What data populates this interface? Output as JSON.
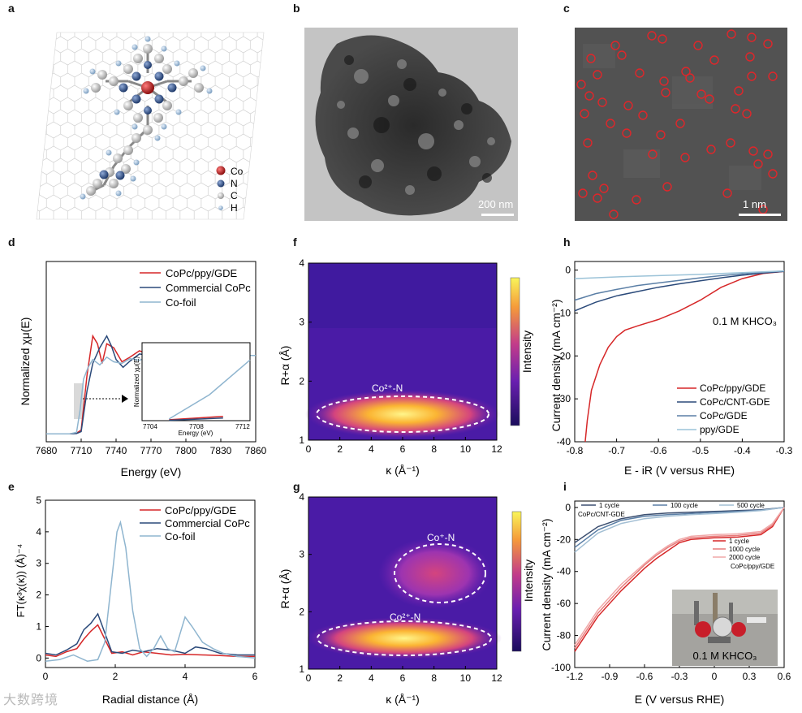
{
  "panels": {
    "a": {
      "label": "a",
      "legend": [
        "Co",
        "N",
        "C",
        "H"
      ],
      "colors": {
        "Co": "#c82020",
        "N": "#3a5a8c",
        "C": "#d0d0d0",
        "H": "#b4cde6"
      }
    },
    "b": {
      "label": "b",
      "scale": "200 nm"
    },
    "c": {
      "label": "c",
      "scale": "1 nm"
    },
    "d": {
      "label": "d",
      "ylabel": "Normalized χμ(E)",
      "xlabel": "Energy (eV)",
      "xticks": [
        "7680",
        "7710",
        "7740",
        "7770",
        "7800",
        "7830",
        "7860"
      ],
      "inset_ylabel": "Normalized χμ(E)",
      "inset_xlabel": "Energy (eV)",
      "inset_xticks": [
        "7704",
        "7708",
        "7712"
      ]
    },
    "e": {
      "label": "e",
      "ylabel": "FT(κ³χ(κ)) (Å)⁻⁴",
      "xlabel": "Radial distance (Å)",
      "xticks": [
        "0",
        "2",
        "4",
        "6"
      ],
      "yticks": [
        "0",
        "1",
        "2",
        "3",
        "4",
        "5"
      ]
    },
    "f": {
      "label": "f",
      "ylabel": "R+α (Å)",
      "xlabel": "κ (Å⁻¹)",
      "colorbar": "Intensity",
      "annotation": "Co²⁺-N",
      "xticks": [
        "0",
        "2",
        "4",
        "6",
        "8",
        "10",
        "12"
      ],
      "yticks": [
        "1",
        "2",
        "3",
        "4"
      ]
    },
    "g": {
      "label": "g",
      "ylabel": "R+α (Å)",
      "xlabel": "κ (Å⁻¹)",
      "colorbar": "Intensity",
      "annotation1": "Co⁺-N",
      "annotation2": "Co²⁺-N",
      "xticks": [
        "0",
        "2",
        "4",
        "6",
        "8",
        "10",
        "12"
      ],
      "yticks": [
        "1",
        "2",
        "3",
        "4"
      ]
    },
    "h": {
      "label": "h",
      "ylabel": "Current density (mA cm⁻²)",
      "xlabel": "E - iR (V versus RHE)",
      "note": "0.1 M KHCO₃",
      "xticks": [
        "-0.8",
        "-0.7",
        "-0.6",
        "-0.5",
        "-0.4",
        "-0.3"
      ],
      "yticks": [
        "0",
        "-10",
        "-20",
        "-30",
        "-40"
      ]
    },
    "i": {
      "label": "i",
      "ylabel": "Current density (mA cm⁻²)",
      "xlabel": "E (V versus RHE)",
      "legend_top": [
        "1 cycle",
        "100 cycle",
        "500 cycle"
      ],
      "legend_top_caption": "CoPc/CNT-GDE",
      "legend_bottom": [
        "1 cycle",
        "1000 cycle",
        "2000 cycle"
      ],
      "legend_bottom_caption": "CoPc/ppy/GDE",
      "photo_caption": "0.1 M KHCO₃",
      "xticks": [
        "-1.2",
        "-0.9",
        "-0.6",
        "-0.3",
        "0",
        "0.3",
        "0.6"
      ],
      "yticks": [
        "0",
        "-20",
        "-40",
        "-60",
        "-80",
        "-100"
      ]
    }
  },
  "watermark": "大数跨境",
  "chart_data": [
    {
      "id": "d",
      "type": "line",
      "title": "",
      "xlabel": "Energy (eV)",
      "ylabel": "Normalized χμ(E)",
      "xlim": [
        7680,
        7860
      ],
      "series": [
        {
          "name": "CoPc/ppy/GDE",
          "color": "#d62728",
          "x": [
            7680,
            7700,
            7706,
            7710,
            7715,
            7720,
            7724,
            7728,
            7732,
            7738,
            7745,
            7752,
            7760,
            7770,
            7780,
            7800,
            7820,
            7840,
            7860
          ],
          "y": [
            0,
            0,
            0.01,
            0.05,
            0.75,
            1.25,
            1.15,
            0.9,
            1.15,
            1.1,
            0.92,
            0.98,
            1.06,
            1.01,
            0.97,
            1.02,
            1.0,
            1.0,
            1.0
          ]
        },
        {
          "name": "Commercial CoPc",
          "color": "#2b4a7a",
          "x": [
            7680,
            7700,
            7706,
            7710,
            7715,
            7720,
            7726,
            7732,
            7736,
            7740,
            7746,
            7752,
            7760,
            7770,
            7780,
            7800,
            7820,
            7840,
            7860
          ],
          "y": [
            0,
            0,
            0.005,
            0.03,
            0.55,
            0.9,
            1.1,
            1.25,
            1.12,
            0.95,
            0.85,
            0.93,
            1.02,
            1.0,
            0.97,
            1.01,
            1.0,
            1.0,
            1.0
          ]
        },
        {
          "name": "Co-foil",
          "color": "#8fb5cf",
          "x": [
            7680,
            7700,
            7706,
            7709,
            7712,
            7716,
            7720,
            7726,
            7732,
            7738,
            7745,
            7752,
            7760,
            7770,
            7780,
            7790,
            7800,
            7810,
            7820,
            7840,
            7860
          ],
          "y": [
            0,
            0,
            0.02,
            0.3,
            0.7,
            0.85,
            0.95,
            0.88,
            0.98,
            0.92,
            0.9,
            0.96,
            0.94,
            0.99,
            0.97,
            1.03,
            1.06,
            0.95,
            0.97,
            1.0,
            1.0
          ]
        }
      ]
    },
    {
      "id": "e",
      "type": "line",
      "xlabel": "Radial distance (Å)",
      "ylabel": "FT(κ³χ(κ)) (Å)⁻⁴",
      "xlim": [
        0,
        6
      ],
      "ylim": [
        -0.3,
        5
      ],
      "series": [
        {
          "name": "CoPc/ppy/GDE",
          "color": "#d62728",
          "x": [
            0,
            0.3,
            0.6,
            0.9,
            1.1,
            1.3,
            1.5,
            1.7,
            1.9,
            2.2,
            2.5,
            2.8,
            3.2,
            3.6,
            4.0,
            4.5,
            5.0,
            5.5,
            6.0
          ],
          "y": [
            0.1,
            0.05,
            0.2,
            0.3,
            0.6,
            0.85,
            1.05,
            0.6,
            0.15,
            0.2,
            0.1,
            0.2,
            0.15,
            0.1,
            0.12,
            0.1,
            0.08,
            0.05,
            0.05
          ]
        },
        {
          "name": "Commercial CoPc",
          "color": "#2b4a7a",
          "x": [
            0,
            0.3,
            0.6,
            0.9,
            1.1,
            1.3,
            1.5,
            1.7,
            1.9,
            2.2,
            2.5,
            2.8,
            3.2,
            3.6,
            4.0,
            4.3,
            4.6,
            5.0,
            5.5,
            6.0
          ],
          "y": [
            0.15,
            0.1,
            0.25,
            0.45,
            0.9,
            1.1,
            1.4,
            0.8,
            0.2,
            0.15,
            0.25,
            0.2,
            0.3,
            0.25,
            0.15,
            0.35,
            0.3,
            0.15,
            0.1,
            0.1
          ]
        },
        {
          "name": "Co-foil",
          "color": "#8fb5cf",
          "x": [
            0,
            0.4,
            0.8,
            1.2,
            1.5,
            1.7,
            1.9,
            2.05,
            2.15,
            2.3,
            2.5,
            2.7,
            2.9,
            3.1,
            3.3,
            3.5,
            3.7,
            4.0,
            4.2,
            4.5,
            4.8,
            5.1,
            5.5,
            6.0
          ],
          "y": [
            -0.1,
            -0.05,
            0.1,
            -0.1,
            -0.05,
            0.5,
            2.5,
            4.0,
            4.3,
            3.5,
            1.5,
            0.3,
            0.05,
            0.3,
            0.7,
            0.3,
            0.2,
            1.3,
            1.0,
            0.5,
            0.3,
            0.15,
            0.05,
            0.0
          ]
        }
      ]
    },
    {
      "id": "f",
      "type": "heatmap",
      "xlabel": "κ (Å⁻¹)",
      "ylabel": "R+α (Å)",
      "xlim": [
        0,
        12
      ],
      "ylim": [
        1,
        4
      ],
      "peaks": [
        {
          "label": "Co²⁺-N",
          "k": 6.0,
          "R": 1.5
        }
      ]
    },
    {
      "id": "g",
      "type": "heatmap",
      "xlabel": "κ (Å⁻¹)",
      "ylabel": "R+α (Å)",
      "xlim": [
        0,
        12
      ],
      "ylim": [
        1,
        4
      ],
      "peaks": [
        {
          "label": "Co⁺-N",
          "k": 8.5,
          "R": 2.7
        },
        {
          "label": "Co²⁺-N",
          "k": 6.0,
          "R": 1.5
        }
      ]
    },
    {
      "id": "h",
      "type": "line",
      "xlabel": "E - iR (V versus RHE)",
      "ylabel": "Current density (mA cm⁻²)",
      "xlim": [
        -0.8,
        -0.3
      ],
      "ylim": [
        -40,
        0
      ],
      "series": [
        {
          "name": "CoPc/ppy/GDE",
          "color": "#d62728",
          "x": [
            -0.775,
            -0.77,
            -0.76,
            -0.74,
            -0.72,
            -0.7,
            -0.68,
            -0.65,
            -0.6,
            -0.55,
            -0.5,
            -0.45,
            -0.4,
            -0.35,
            -0.3
          ],
          "y": [
            -40,
            -35,
            -28,
            -22,
            -18,
            -15.5,
            -14,
            -13,
            -11.5,
            -9.5,
            -7,
            -4,
            -2,
            -0.8,
            -0.3
          ]
        },
        {
          "name": "CoPc/CNT-GDE",
          "color": "#2b4a7a",
          "x": [
            -0.8,
            -0.75,
            -0.7,
            -0.65,
            -0.6,
            -0.55,
            -0.5,
            -0.45,
            -0.4,
            -0.35,
            -0.3
          ],
          "y": [
            -9.5,
            -7.5,
            -6,
            -5,
            -4,
            -3.2,
            -2.5,
            -1.8,
            -1.2,
            -0.7,
            -0.3
          ]
        },
        {
          "name": "CoPc/GDE",
          "color": "#5b7fa6",
          "x": [
            -0.8,
            -0.75,
            -0.7,
            -0.65,
            -0.6,
            -0.55,
            -0.5,
            -0.45,
            -0.4,
            -0.35,
            -0.3
          ],
          "y": [
            -7,
            -5.5,
            -4.5,
            -3.6,
            -3,
            -2.4,
            -1.8,
            -1.3,
            -0.9,
            -0.5,
            -0.2
          ]
        },
        {
          "name": "ppy/GDE",
          "color": "#9cc3d8",
          "x": [
            -0.8,
            -0.7,
            -0.6,
            -0.5,
            -0.4,
            -0.3
          ],
          "y": [
            -2,
            -1.6,
            -1.3,
            -1.0,
            -0.6,
            -0.2
          ]
        }
      ]
    },
    {
      "id": "i",
      "type": "line",
      "xlabel": "E (V versus RHE)",
      "ylabel": "Current density (mA cm⁻²)",
      "xlim": [
        -1.2,
        0.6
      ],
      "ylim": [
        -100,
        0
      ],
      "series": [
        {
          "name": "CoPc/CNT-GDE 1 cycle",
          "color": "#3c4f70",
          "x": [
            -1.2,
            -1.0,
            -0.8,
            -0.6,
            -0.4,
            -0.2,
            0,
            0.2,
            0.4,
            0.6
          ],
          "y": [
            -22,
            -12,
            -7,
            -4.5,
            -3.5,
            -3,
            -2.5,
            -2,
            -1.5,
            0
          ]
        },
        {
          "name": "CoPc/CNT-GDE 100 cycle",
          "color": "#5b7fa6",
          "x": [
            -1.2,
            -1.0,
            -0.8,
            -0.6,
            -0.4,
            -0.2,
            0,
            0.2,
            0.4,
            0.6
          ],
          "y": [
            -25,
            -14,
            -8,
            -5.5,
            -4.5,
            -3.8,
            -3,
            -2.5,
            -1.8,
            0
          ]
        },
        {
          "name": "CoPc/CNT-GDE 500 cycle",
          "color": "#a3bfd4",
          "x": [
            -1.2,
            -1.0,
            -0.8,
            -0.6,
            -0.4,
            -0.2,
            0,
            0.2,
            0.4,
            0.6
          ],
          "y": [
            -28,
            -16,
            -10,
            -7,
            -5.5,
            -4.5,
            -3.8,
            -3,
            -2,
            0
          ]
        },
        {
          "name": "CoPc/ppy/GDE 1 cycle",
          "color": "#d62728",
          "x": [
            -1.2,
            -1.0,
            -0.8,
            -0.6,
            -0.5,
            -0.4,
            -0.3,
            -0.2,
            0,
            0.2,
            0.4,
            0.5,
            0.6
          ],
          "y": [
            -90,
            -68,
            -52,
            -38,
            -32,
            -27,
            -22,
            -20,
            -19,
            -18.5,
            -17,
            -12,
            0
          ]
        },
        {
          "name": "CoPc/ppy/GDE 1000 cycle",
          "color": "#e77b7b",
          "x": [
            -1.2,
            -1.0,
            -0.8,
            -0.6,
            -0.5,
            -0.4,
            -0.3,
            -0.2,
            0,
            0.2,
            0.4,
            0.5,
            0.6
          ],
          "y": [
            -88,
            -66,
            -50,
            -36,
            -30,
            -25,
            -21,
            -19,
            -18,
            -17.5,
            -16,
            -11,
            0
          ]
        },
        {
          "name": "CoPc/ppy/GDE 2000 cycle",
          "color": "#f0a8a8",
          "x": [
            -1.2,
            -1.0,
            -0.8,
            -0.6,
            -0.5,
            -0.4,
            -0.3,
            -0.2,
            0,
            0.2,
            0.4,
            0.5,
            0.6
          ],
          "y": [
            -86,
            -64,
            -48,
            -35,
            -29,
            -24,
            -20,
            -18,
            -17,
            -16.5,
            -15,
            -10,
            0
          ]
        }
      ]
    }
  ]
}
